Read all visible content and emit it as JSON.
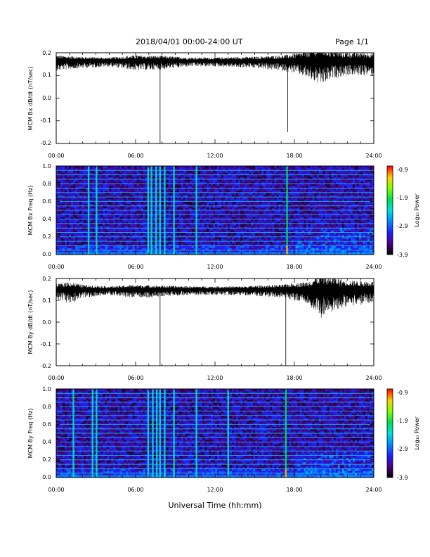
{
  "header": {
    "title": "2018/04/01   00:00-24:00 UT",
    "page": "Page 1/1"
  },
  "x_axis_title": "Universal Time (hh:mm)",
  "x_ticks": [
    "00:00",
    "06:00",
    "12:00",
    "18:00",
    "24:00"
  ],
  "colorbar": {
    "label": "Log₁₀ Power",
    "ticks": [
      "-0.9",
      "-1.9",
      "-2.9",
      "-3.9"
    ],
    "range": [
      -3.9,
      -0.9
    ]
  },
  "chart_data": [
    {
      "type": "line",
      "ylabel": "MCM Bx dB/dt (nT/sec)",
      "xlim": [
        0,
        24
      ],
      "ylim": [
        -0.2,
        0.2
      ],
      "yticks": [
        "-0.2",
        "-0.1",
        "0.0",
        "0.1",
        "0.2"
      ],
      "baseline": 0.165,
      "noise_profile": [
        [
          0,
          0.02
        ],
        [
          2,
          0.015
        ],
        [
          4,
          0.012
        ],
        [
          6,
          0.02
        ],
        [
          8,
          0.018
        ],
        [
          10,
          0.012
        ],
        [
          12,
          0.012
        ],
        [
          15,
          0.015
        ],
        [
          17,
          0.02
        ],
        [
          18,
          0.025
        ],
        [
          19,
          0.035
        ],
        [
          20,
          0.05
        ],
        [
          21,
          0.035
        ],
        [
          22,
          0.03
        ],
        [
          24,
          0.03
        ]
      ],
      "spikes": [
        {
          "x": 7.85,
          "y": -0.2
        },
        {
          "x": 17.5,
          "y": -0.15
        }
      ]
    },
    {
      "type": "heatmap",
      "ylabel": "MCM Bx Freq (Hz)",
      "xlim": [
        0,
        24
      ],
      "ylim": [
        0.0,
        1.0
      ],
      "yticks": [
        "0.0",
        "0.2",
        "0.4",
        "0.6",
        "0.8",
        "1.0"
      ],
      "zlim": [
        -3.9,
        -0.9
      ],
      "harmonics_hz": [
        0.05,
        0.1,
        0.15,
        0.2,
        0.25,
        0.3,
        0.35,
        0.4,
        0.45,
        0.5,
        0.55,
        0.6,
        0.65,
        0.7,
        0.75,
        0.8,
        0.85,
        0.9,
        0.95
      ],
      "broadband_events_hr": [
        2.45,
        3.05,
        6.95,
        7.2,
        7.55,
        7.85,
        8.2,
        8.9,
        10.6,
        17.45
      ]
    },
    {
      "type": "line",
      "ylabel": "MCM By dB/dt (nT/sec)",
      "xlim": [
        0,
        24
      ],
      "ylim": [
        -0.2,
        0.2
      ],
      "yticks": [
        "-0.2",
        "-0.1",
        "0.0",
        "0.1",
        "0.2"
      ],
      "baseline": 0.15,
      "noise_profile": [
        [
          0,
          0.02
        ],
        [
          1,
          0.03
        ],
        [
          2,
          0.018
        ],
        [
          4,
          0.012
        ],
        [
          6,
          0.018
        ],
        [
          8,
          0.015
        ],
        [
          10,
          0.012
        ],
        [
          14,
          0.012
        ],
        [
          17,
          0.018
        ],
        [
          19,
          0.03
        ],
        [
          20,
          0.06
        ],
        [
          21,
          0.045
        ],
        [
          22,
          0.035
        ],
        [
          24,
          0.03
        ]
      ],
      "spikes": [
        {
          "x": 7.85,
          "y": -0.2
        },
        {
          "x": 17.35,
          "y": -0.2
        }
      ]
    },
    {
      "type": "heatmap",
      "ylabel": "MCM By Freq (Hz)",
      "xlim": [
        0,
        24
      ],
      "ylim": [
        0.0,
        1.0
      ],
      "yticks": [
        "0.0",
        "0.2",
        "0.4",
        "0.6",
        "0.8",
        "1.0"
      ],
      "zlim": [
        -3.9,
        -0.9
      ],
      "harmonics_hz": [
        0.05,
        0.1,
        0.15,
        0.2,
        0.25,
        0.3,
        0.35,
        0.4,
        0.45,
        0.5,
        0.55,
        0.6,
        0.65,
        0.7,
        0.75,
        0.8,
        0.85,
        0.9,
        0.95
      ],
      "broadband_events_hr": [
        1.3,
        2.75,
        3.05,
        6.95,
        7.3,
        7.6,
        7.85,
        8.2,
        8.9,
        10.6,
        13.0,
        17.35
      ]
    }
  ]
}
